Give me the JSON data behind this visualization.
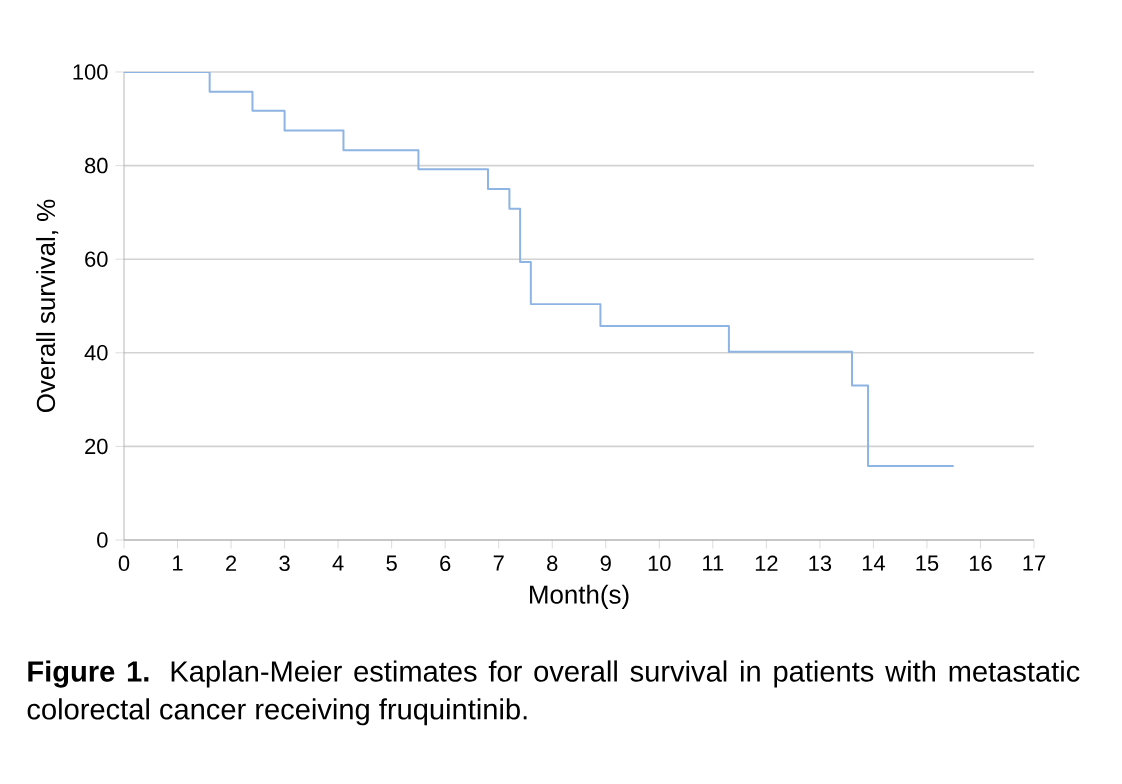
{
  "chart_data": {
    "type": "step",
    "xlabel": "Month(s)",
    "ylabel": "Overall survival, %",
    "x": [
      0,
      1.6,
      2.4,
      3.0,
      4.1,
      5.5,
      6.8,
      7.2,
      7.4,
      7.6,
      8.9,
      11.3,
      13.6,
      13.9,
      15.5
    ],
    "series": [
      {
        "color": "#8db4e2",
        "values": [
          100,
          95.8,
          91.7,
          87.5,
          83.3,
          79.2,
          75,
          70.8,
          59.4,
          50.4,
          45.7,
          40.2,
          33,
          15.8,
          15.8
        ]
      }
    ],
    "xlim": [
      0,
      17
    ],
    "ylim": [
      0,
      100
    ],
    "xticks": [
      0,
      1,
      2,
      3,
      4,
      5,
      6,
      7,
      8,
      9,
      10,
      11,
      12,
      13,
      14,
      15,
      16,
      17
    ],
    "yticks": [
      0,
      20,
      40,
      60,
      80,
      100
    ],
    "grid": "y",
    "annotations": [
      "**Figure 1.** Kaplan-Meier estimates for overall survival in patients with metastatic colorectal cancer receiving fruquintinib."
    ]
  }
}
